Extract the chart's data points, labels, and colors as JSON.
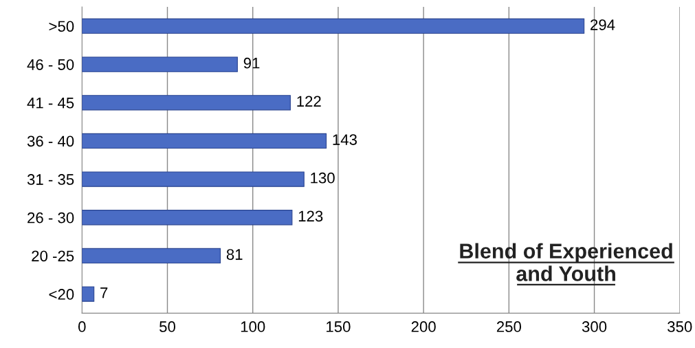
{
  "chart_data": {
    "type": "bar",
    "orientation": "horizontal",
    "title": "Blend of Experienced\nand Youth",
    "categories": [
      ">50",
      "46 - 50",
      "41 - 45",
      "36 - 40",
      "31 - 35",
      "26 - 30",
      "20 -25",
      "<20"
    ],
    "values": [
      294,
      91,
      122,
      143,
      130,
      123,
      81,
      7
    ],
    "color": "#4a6cc4",
    "xlim": [
      0,
      350
    ],
    "xticks": [
      0,
      50,
      100,
      150,
      200,
      250,
      300,
      350
    ],
    "grid": "x",
    "data_labels": true
  }
}
